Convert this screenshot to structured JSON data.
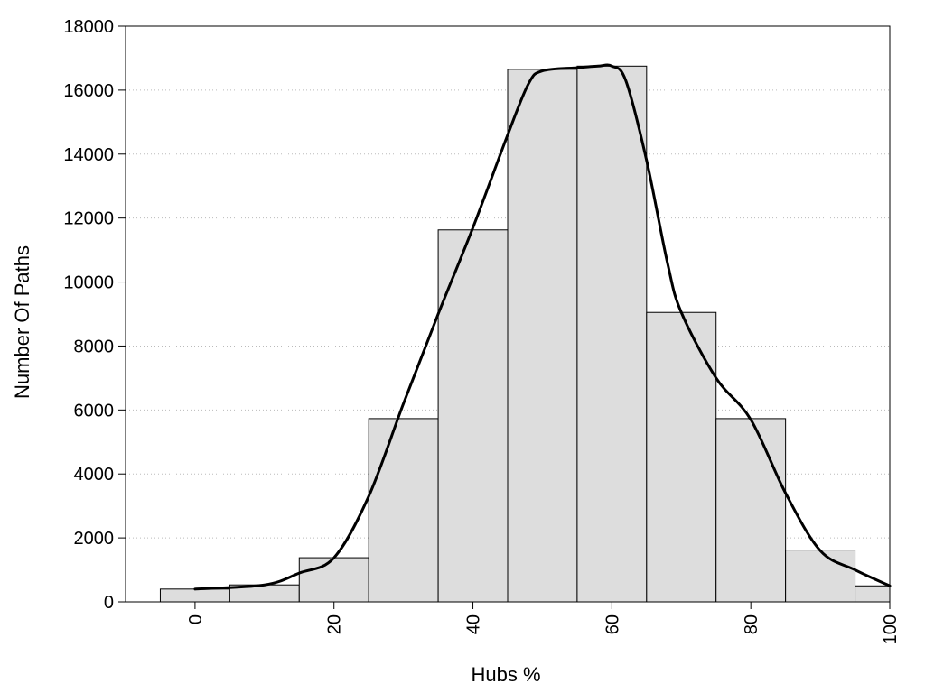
{
  "chart_data": {
    "type": "bar",
    "title": "",
    "xlabel": "Hubs %",
    "ylabel": "Number Of Paths",
    "xlim": [
      -10,
      100
    ],
    "ylim": [
      0,
      18000
    ],
    "x_ticks": [
      0,
      20,
      40,
      60,
      80,
      100
    ],
    "y_ticks": [
      0,
      2000,
      4000,
      6000,
      8000,
      10000,
      12000,
      14000,
      16000,
      18000
    ],
    "grid": "horizontal dotted",
    "legend": "none",
    "bin_width": 10,
    "series": [
      {
        "type": "bar",
        "x": [
          0,
          10,
          20,
          30,
          40,
          50,
          60,
          70,
          80,
          90,
          100
        ],
        "values": [
          400,
          530,
          1380,
          5730,
          11630,
          16650,
          16750,
          9050,
          5730,
          1620,
          500
        ]
      },
      {
        "type": "line",
        "x": [
          0,
          10,
          15,
          20,
          25,
          30,
          35,
          40,
          45,
          48,
          50,
          55,
          58,
          60,
          62,
          65,
          68,
          70,
          75,
          80,
          85,
          90,
          95,
          100
        ],
        "values": [
          400,
          530,
          900,
          1380,
          3300,
          6200,
          9000,
          11700,
          14600,
          16200,
          16600,
          16700,
          16750,
          16750,
          16300,
          13800,
          10600,
          9050,
          7000,
          5700,
          3400,
          1600,
          1000,
          500
        ]
      }
    ]
  },
  "colors": {
    "bar_fill": "#dddddd",
    "bar_stroke": "#000000",
    "line": "#000000",
    "grid": "#bbbbbb"
  }
}
